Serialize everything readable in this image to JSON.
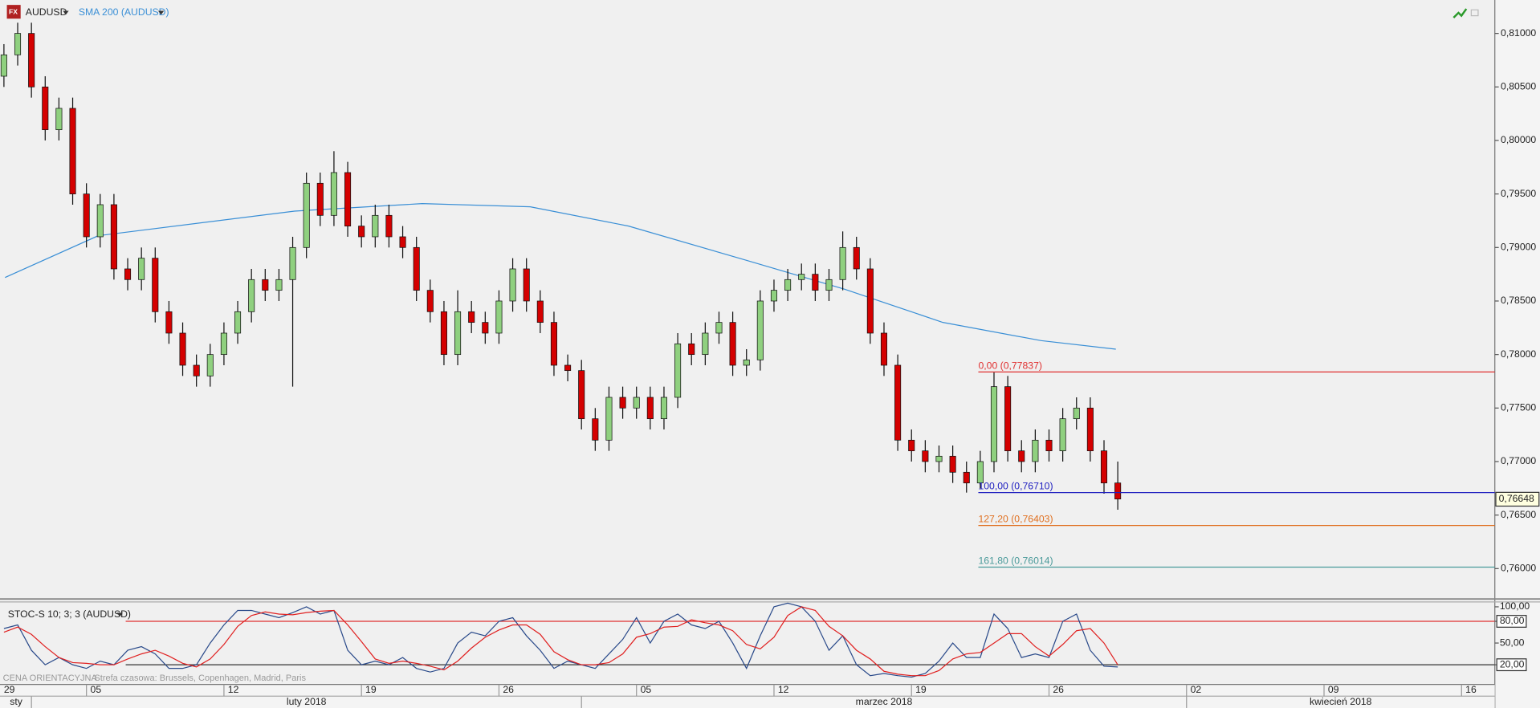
{
  "chart_data": [
    {
      "type": "candlestick",
      "title": "AUDUSD",
      "up_color": "#8fd07f",
      "down_color": "#d40000",
      "x": [
        2,
        2.5,
        3,
        3.5,
        4,
        4.5,
        5,
        5.5,
        6,
        6.5,
        7,
        7.5,
        8,
        8.5,
        9,
        9.5,
        10,
        10.5,
        11,
        11.5,
        12,
        12.5,
        13,
        13.5,
        14,
        14.5,
        15,
        15.5,
        16,
        16.5,
        17,
        17.5,
        18,
        18.5,
        19,
        19.5,
        20,
        20.5,
        21,
        21.5,
        22,
        22.5,
        23,
        23.5,
        24,
        24.5,
        25,
        25.5,
        26,
        26.5,
        27,
        27.5,
        28,
        28.5,
        29,
        29.5,
        30,
        30.5,
        31,
        31.5,
        32,
        32.5,
        33,
        33.5,
        34,
        34.5,
        35,
        35.5,
        36,
        36.5,
        37,
        37.5,
        38,
        38.5,
        39,
        39.5,
        40,
        40.5,
        41,
        41.5,
        42,
        42.5
      ],
      "open": [
        0.806,
        0.808,
        0.81,
        0.805,
        0.801,
        0.803,
        0.795,
        0.791,
        0.794,
        0.788,
        0.787,
        0.789,
        0.784,
        0.782,
        0.779,
        0.778,
        0.78,
        0.782,
        0.784,
        0.787,
        0.786,
        0.787,
        0.79,
        0.796,
        0.793,
        0.797,
        0.792,
        0.791,
        0.793,
        0.791,
        0.79,
        0.786,
        0.784,
        0.78,
        0.784,
        0.783,
        0.782,
        0.785,
        0.788,
        0.785,
        0.783,
        0.779,
        0.7785,
        0.774,
        0.772,
        0.776,
        0.775,
        0.776,
        0.774,
        0.776,
        0.781,
        0.78,
        0.782,
        0.783,
        0.779,
        0.7795,
        0.785,
        0.786,
        0.787,
        0.7875,
        0.786,
        0.787,
        0.79,
        0.788,
        0.782,
        0.779,
        0.772,
        0.771,
        0.77,
        0.7705,
        0.769,
        0.768,
        0.77,
        0.777,
        0.771,
        0.77,
        0.772,
        0.771,
        0.774,
        0.775,
        0.771,
        0.768
      ],
      "high": [
        0.809,
        0.811,
        0.811,
        0.806,
        0.804,
        0.804,
        0.796,
        0.795,
        0.795,
        0.789,
        0.79,
        0.79,
        0.785,
        0.783,
        0.78,
        0.781,
        0.783,
        0.785,
        0.788,
        0.788,
        0.788,
        0.791,
        0.797,
        0.797,
        0.799,
        0.798,
        0.793,
        0.794,
        0.794,
        0.792,
        0.791,
        0.787,
        0.785,
        0.786,
        0.785,
        0.784,
        0.786,
        0.789,
        0.789,
        0.786,
        0.784,
        0.78,
        0.7795,
        0.775,
        0.777,
        0.777,
        0.777,
        0.777,
        0.777,
        0.782,
        0.782,
        0.783,
        0.784,
        0.784,
        0.7805,
        0.786,
        0.787,
        0.788,
        0.7885,
        0.7885,
        0.788,
        0.7915,
        0.791,
        0.789,
        0.783,
        0.78,
        0.773,
        0.772,
        0.7715,
        0.7715,
        0.77,
        0.771,
        0.77837,
        0.778,
        0.772,
        0.773,
        0.773,
        0.775,
        0.776,
        0.776,
        0.772,
        0.77
      ],
      "low": [
        0.805,
        0.807,
        0.804,
        0.8,
        0.8,
        0.794,
        0.79,
        0.79,
        0.787,
        0.786,
        0.786,
        0.783,
        0.781,
        0.778,
        0.777,
        0.777,
        0.779,
        0.781,
        0.783,
        0.785,
        0.785,
        0.777,
        0.789,
        0.792,
        0.792,
        0.791,
        0.79,
        0.79,
        0.79,
        0.789,
        0.785,
        0.783,
        0.779,
        0.779,
        0.782,
        0.781,
        0.781,
        0.784,
        0.784,
        0.782,
        0.778,
        0.7775,
        0.773,
        0.771,
        0.771,
        0.774,
        0.774,
        0.773,
        0.773,
        0.775,
        0.779,
        0.779,
        0.781,
        0.778,
        0.778,
        0.7785,
        0.784,
        0.785,
        0.786,
        0.785,
        0.785,
        0.786,
        0.787,
        0.781,
        0.778,
        0.771,
        0.77,
        0.769,
        0.769,
        0.768,
        0.7671,
        0.7675,
        0.769,
        0.77,
        0.769,
        0.769,
        0.77,
        0.77,
        0.773,
        0.77,
        0.767,
        0.7655
      ],
      "close": [
        0.808,
        0.81,
        0.805,
        0.801,
        0.803,
        0.795,
        0.791,
        0.794,
        0.788,
        0.787,
        0.789,
        0.784,
        0.782,
        0.779,
        0.778,
        0.78,
        0.782,
        0.784,
        0.787,
        0.786,
        0.787,
        0.79,
        0.796,
        0.793,
        0.797,
        0.792,
        0.791,
        0.793,
        0.791,
        0.79,
        0.786,
        0.784,
        0.78,
        0.784,
        0.783,
        0.782,
        0.785,
        0.788,
        0.785,
        0.783,
        0.779,
        0.7785,
        0.774,
        0.772,
        0.776,
        0.775,
        0.776,
        0.774,
        0.776,
        0.781,
        0.78,
        0.782,
        0.783,
        0.779,
        0.7795,
        0.785,
        0.786,
        0.787,
        0.7875,
        0.786,
        0.787,
        0.79,
        0.788,
        0.782,
        0.779,
        0.772,
        0.771,
        0.77,
        0.7705,
        0.769,
        0.768,
        0.77,
        0.777,
        0.771,
        0.77,
        0.772,
        0.771,
        0.774,
        0.775,
        0.771,
        0.768,
        0.7665
      ],
      "overlay": {
        "name": "SMA 200 (AUDUSD)",
        "color": "#3a8fd6",
        "x": [
          2.04,
          5.43,
          12.57,
          17.21,
          21.14,
          24.71,
          29,
          32.57,
          36.14,
          39.71,
          42.43
        ],
        "values": [
          0.7872,
          0.7911,
          0.7934,
          0.7941,
          0.7938,
          0.792,
          0.7888,
          0.7861,
          0.783,
          0.7813,
          0.7805
        ]
      },
      "levels": [
        {
          "label": "0,00 (0,77837)",
          "value": 0.77837,
          "color": "#e03030",
          "x0": 37.43
        },
        {
          "label": "100,00 (0,76710)",
          "value": 0.7671,
          "color": "#2020c0",
          "x0": 37.43
        },
        {
          "label": "127,20 (0,76403)",
          "value": 0.76403,
          "color": "#e07020",
          "x0": 37.43
        },
        {
          "label": "161,80 (0,76014)",
          "value": 0.76014,
          "color": "#4a9a9a",
          "x0": 37.43
        }
      ],
      "last_price": {
        "value": 0.76648,
        "label": "0,76648"
      },
      "ylim": [
        0.75716,
        0.81312
      ],
      "yticks": [
        {
          "value": 0.76,
          "label": "0,76000"
        },
        {
          "value": 0.765,
          "label": "0,76500"
        },
        {
          "value": 0.77,
          "label": "0,77000"
        },
        {
          "value": 0.775,
          "label": "0,77500"
        },
        {
          "value": 0.78,
          "label": "0,78000"
        },
        {
          "value": 0.785,
          "label": "0,78500"
        },
        {
          "value": 0.79,
          "label": "0,79000"
        },
        {
          "value": 0.795,
          "label": "0,79500"
        },
        {
          "value": 0.8,
          "label": "0,80000"
        },
        {
          "value": 0.805,
          "label": "0,80500"
        },
        {
          "value": 0.81,
          "label": "0,81000"
        }
      ],
      "xlim": [
        1.857,
        56.21
      ],
      "xticks": [
        {
          "value": 0,
          "label": "29"
        },
        {
          "value": 5,
          "label": "05"
        },
        {
          "value": 10,
          "label": "12"
        },
        {
          "value": 15,
          "label": "19"
        },
        {
          "value": 20,
          "label": "26"
        },
        {
          "value": 25,
          "label": "05"
        },
        {
          "value": 30,
          "label": "12"
        },
        {
          "value": 35,
          "label": "19"
        },
        {
          "value": 40,
          "label": "26"
        },
        {
          "value": 45,
          "label": "02"
        },
        {
          "value": 50,
          "label": "09"
        },
        {
          "value": 55,
          "label": "16"
        }
      ],
      "months": [
        {
          "label": "sty",
          "value": -20
        },
        {
          "label": "luty 2018",
          "value": 3
        },
        {
          "label": "marzec 2018",
          "value": 23
        },
        {
          "label": "kwiecień 2018",
          "value": 45
        }
      ]
    },
    {
      "type": "line",
      "title": "STOC-S 10; 3; 3 (AUDUSD)",
      "x": [
        2,
        2.5,
        3,
        3.5,
        4,
        4.5,
        5,
        5.5,
        6,
        6.5,
        7,
        7.5,
        8,
        8.5,
        9,
        9.5,
        10,
        10.5,
        11,
        11.5,
        12,
        12.5,
        13,
        13.5,
        14,
        14.5,
        15,
        15.5,
        16,
        16.5,
        17,
        17.5,
        18,
        18.5,
        19,
        19.5,
        20,
        20.5,
        21,
        21.5,
        22,
        22.5,
        23,
        23.5,
        24,
        24.5,
        25,
        25.5,
        26,
        26.5,
        27,
        27.5,
        28,
        28.5,
        29,
        29.5,
        30,
        30.5,
        31,
        31.5,
        32,
        32.5,
        33,
        33.5,
        34,
        34.5,
        35,
        35.5,
        36,
        36.5,
        37,
        37.5,
        38,
        38.5,
        39,
        39.5,
        40,
        40.5,
        41,
        41.5,
        42,
        42.5
      ],
      "series": [
        {
          "color": "#2a4a8a",
          "values": [
            70,
            75,
            40,
            20,
            30,
            20,
            15,
            25,
            20,
            40,
            45,
            35,
            15,
            15,
            20,
            50,
            75,
            95,
            95,
            90,
            85,
            92,
            100,
            90,
            95,
            40,
            20,
            25,
            20,
            30,
            15,
            10,
            15,
            50,
            65,
            60,
            80,
            85,
            60,
            40,
            15,
            25,
            20,
            15,
            35,
            55,
            85,
            50,
            80,
            90,
            75,
            70,
            80,
            50,
            15,
            60,
            100,
            105,
            100,
            80,
            40,
            60,
            20,
            5,
            8,
            5,
            3,
            8,
            25,
            50,
            30,
            30,
            90,
            70,
            30,
            35,
            30,
            80,
            90,
            40,
            18,
            17
          ]
        },
        {
          "color": "#e02020",
          "values": [
            65,
            72,
            62,
            45,
            30,
            23,
            22,
            20,
            20,
            28,
            35,
            40,
            32,
            22,
            17,
            28,
            48,
            73,
            88,
            93,
            90,
            89,
            92,
            94,
            95,
            75,
            52,
            28,
            22,
            25,
            22,
            18,
            13,
            25,
            43,
            58,
            68,
            75,
            75,
            62,
            38,
            27,
            20,
            20,
            23,
            35,
            58,
            63,
            72,
            73,
            82,
            78,
            75,
            67,
            48,
            42,
            58,
            88,
            100,
            95,
            73,
            60,
            40,
            28,
            11,
            7,
            5,
            5,
            12,
            28,
            35,
            37,
            50,
            63,
            63,
            45,
            32,
            48,
            67,
            70,
            50,
            20
          ]
        }
      ],
      "levels": [
        {
          "value": 80,
          "color": "#e03030"
        },
        {
          "value": 20,
          "color": "#333333"
        }
      ],
      "boxed_ticks": [
        80,
        20
      ],
      "ylim": [
        -5.76,
        108.1
      ],
      "yticks": [
        {
          "value": 100,
          "label": "100,00"
        },
        {
          "value": 80,
          "label": "80,00"
        },
        {
          "value": 50,
          "label": "50,00"
        },
        {
          "value": 20,
          "label": "20,00"
        }
      ]
    }
  ],
  "footer": "CENA ORIENTACYJNA",
  "timezone": "Strefa czasowa: Brussels, Copenhagen, Madrid, Paris"
}
